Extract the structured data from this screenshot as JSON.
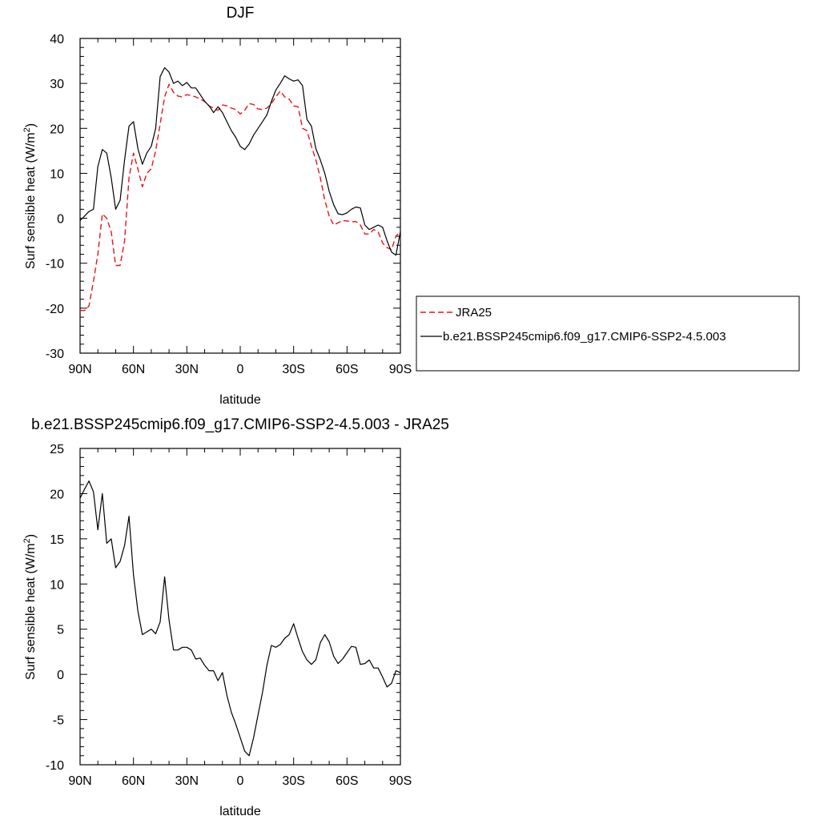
{
  "chart_data": [
    {
      "type": "line",
      "title": "DJF",
      "xlabel": "latitude",
      "ylabel": "Surf sensible heat (W/m",
      "ylabel_sup": "2",
      "ylabel_end": ")",
      "xlim": [
        90,
        -90
      ],
      "ylim": [
        -30,
        40
      ],
      "xticks": [
        90,
        60,
        30,
        0,
        -30,
        -60,
        -90
      ],
      "xtick_labels": [
        "90N",
        "60N",
        "30N",
        "0",
        "30S",
        "60S",
        "90S"
      ],
      "yticks": [
        -30,
        -20,
        -10,
        0,
        10,
        20,
        30,
        40
      ],
      "ytick_labels": [
        "-30",
        "-20",
        "-10",
        "0",
        "10",
        "20",
        "30",
        "40"
      ],
      "grid": false,
      "legend_placement": "right",
      "series": [
        {
          "name": "JRA25",
          "color": "#e8141c",
          "dash": "dashed",
          "points": [
            [
              90,
              -20.5
            ],
            [
              87.5,
              -20.5
            ],
            [
              85,
              -19.5
            ],
            [
              82.5,
              -14
            ],
            [
              80,
              -8
            ],
            [
              77.5,
              1
            ],
            [
              75,
              0
            ],
            [
              72.5,
              -3
            ],
            [
              70,
              -10.5
            ],
            [
              67.5,
              -10.5
            ],
            [
              65,
              -5
            ],
            [
              62.5,
              9
            ],
            [
              60,
              14.5
            ],
            [
              57.5,
              11
            ],
            [
              55,
              7
            ],
            [
              52.5,
              10
            ],
            [
              50,
              11
            ],
            [
              47.5,
              15
            ],
            [
              45,
              21
            ],
            [
              42.5,
              27
            ],
            [
              40,
              29.8
            ],
            [
              37.5,
              28
            ],
            [
              35,
              27.2
            ],
            [
              32.5,
              27
            ],
            [
              30,
              27.5
            ],
            [
              27.5,
              27.3
            ],
            [
              25,
              27
            ],
            [
              22.5,
              26.5
            ],
            [
              20,
              26
            ],
            [
              17.5,
              25
            ],
            [
              15,
              24.5
            ],
            [
              12.5,
              24
            ],
            [
              10,
              25.2
            ],
            [
              7.5,
              25
            ],
            [
              5,
              24.5
            ],
            [
              2.5,
              24.2
            ],
            [
              0,
              23.2
            ],
            [
              -2.5,
              24
            ],
            [
              -5,
              25.5
            ],
            [
              -7.5,
              25.3
            ],
            [
              -10,
              24.3
            ],
            [
              -12.5,
              24.2
            ],
            [
              -15,
              24.5
            ],
            [
              -17.5,
              25.5
            ],
            [
              -20,
              27
            ],
            [
              -22.5,
              28.3
            ],
            [
              -25,
              27
            ],
            [
              -27.5,
              26.5
            ],
            [
              -30,
              25
            ],
            [
              -32.5,
              24.8
            ],
            [
              -35,
              20
            ],
            [
              -37.5,
              19.5
            ],
            [
              -40,
              16
            ],
            [
              -42.5,
              13
            ],
            [
              -45,
              9
            ],
            [
              -47.5,
              4
            ],
            [
              -50,
              0.5
            ],
            [
              -52.5,
              -1.5
            ],
            [
              -55,
              -1
            ],
            [
              -57.5,
              -0.5
            ],
            [
              -60,
              -0.6
            ],
            [
              -62.5,
              -0.8
            ],
            [
              -65,
              -0.7
            ],
            [
              -67.5,
              -1.5
            ],
            [
              -70,
              -3.5
            ],
            [
              -72.5,
              -3.5
            ],
            [
              -75,
              -2.5
            ],
            [
              -77.5,
              -3
            ],
            [
              -80,
              -5.5
            ],
            [
              -82.5,
              -6.5
            ],
            [
              -85,
              -7
            ],
            [
              -87.5,
              -4
            ],
            [
              -90,
              -3
            ]
          ]
        },
        {
          "name": "b.e21.BSSP245cmip6.f09_g17.CMIP6-SSP2-4.5.003",
          "color": "#000000",
          "dash": "solid",
          "points": [
            [
              90,
              -0.5
            ],
            [
              87.5,
              0.5
            ],
            [
              85,
              1.5
            ],
            [
              82.5,
              2
            ],
            [
              80,
              11.5
            ],
            [
              77.5,
              15.3
            ],
            [
              75,
              14.5
            ],
            [
              72.5,
              9
            ],
            [
              70,
              2
            ],
            [
              67.5,
              4
            ],
            [
              65,
              13
            ],
            [
              62.5,
              20.5
            ],
            [
              60,
              21.5
            ],
            [
              57.5,
              15.5
            ],
            [
              55,
              12
            ],
            [
              52.5,
              14.5
            ],
            [
              50,
              16
            ],
            [
              47.5,
              20
            ],
            [
              45,
              31.5
            ],
            [
              42.5,
              33.5
            ],
            [
              40,
              32.5
            ],
            [
              37.5,
              30
            ],
            [
              35,
              30.5
            ],
            [
              32.5,
              29.5
            ],
            [
              30,
              30.2
            ],
            [
              27.5,
              29
            ],
            [
              25,
              29
            ],
            [
              22.5,
              27.5
            ],
            [
              20,
              26
            ],
            [
              17.5,
              25
            ],
            [
              15,
              23.5
            ],
            [
              12.5,
              24.8
            ],
            [
              10,
              23.5
            ],
            [
              7.5,
              21.5
            ],
            [
              5,
              19.5
            ],
            [
              2.5,
              18
            ],
            [
              0,
              16
            ],
            [
              -2.5,
              15.3
            ],
            [
              -5,
              16.5
            ],
            [
              -7.5,
              18.5
            ],
            [
              -10,
              20
            ],
            [
              -12.5,
              21.5
            ],
            [
              -15,
              23
            ],
            [
              -17.5,
              26
            ],
            [
              -20,
              28.5
            ],
            [
              -22.5,
              30
            ],
            [
              -25,
              31.7
            ],
            [
              -27.5,
              31
            ],
            [
              -30,
              30.5
            ],
            [
              -32.5,
              30.8
            ],
            [
              -35,
              29.5
            ],
            [
              -37.5,
              22
            ],
            [
              -40,
              20.5
            ],
            [
              -42.5,
              15.5
            ],
            [
              -45,
              13
            ],
            [
              -47.5,
              10
            ],
            [
              -50,
              6
            ],
            [
              -52.5,
              3
            ],
            [
              -55,
              1
            ],
            [
              -57.5,
              0.8
            ],
            [
              -60,
              1.2
            ],
            [
              -62.5,
              2
            ],
            [
              -65,
              2.5
            ],
            [
              -67.5,
              2.3
            ],
            [
              -70,
              -1.5
            ],
            [
              -72.5,
              -2.5
            ],
            [
              -75,
              -2
            ],
            [
              -77.5,
              -1.5
            ],
            [
              -80,
              -2
            ],
            [
              -82.5,
              -5
            ],
            [
              -85,
              -7.5
            ],
            [
              -87.5,
              -8.2
            ],
            [
              -90,
              -3
            ]
          ]
        }
      ]
    },
    {
      "type": "line",
      "title": "b.e21.BSSP245cmip6.f09_g17.CMIP6-SSP2-4.5.003 - JRA25",
      "xlabel": "latitude",
      "ylabel": "Surf sensible heat (W/m",
      "ylabel_sup": "2",
      "ylabel_end": ")",
      "xlim": [
        90,
        -90
      ],
      "ylim": [
        -10,
        25
      ],
      "xticks": [
        90,
        60,
        30,
        0,
        -30,
        -60,
        -90
      ],
      "xtick_labels": [
        "90N",
        "60N",
        "30N",
        "0",
        "30S",
        "60S",
        "90S"
      ],
      "yticks": [
        -10,
        -5,
        0,
        5,
        10,
        15,
        20,
        25
      ],
      "ytick_labels": [
        "-10",
        "-5",
        "0",
        "5",
        "10",
        "15",
        "20",
        "25"
      ],
      "grid": false,
      "series": [
        {
          "color": "#000000",
          "dash": "solid",
          "points": [
            [
              90,
              19.5
            ],
            [
              87.5,
              20.5
            ],
            [
              85,
              21.4
            ],
            [
              82.5,
              20.2
            ],
            [
              80,
              16
            ],
            [
              77.5,
              20
            ],
            [
              75,
              14.5
            ],
            [
              72.5,
              15
            ],
            [
              70,
              11.8
            ],
            [
              67.5,
              12.5
            ],
            [
              65,
              14.3
            ],
            [
              62.5,
              17.5
            ],
            [
              60,
              11
            ],
            [
              57.5,
              7
            ],
            [
              55,
              4.4
            ],
            [
              52.5,
              4.7
            ],
            [
              50,
              5
            ],
            [
              47.5,
              4.5
            ],
            [
              45,
              5.8
            ],
            [
              42.5,
              10.8
            ],
            [
              40,
              6
            ],
            [
              37.5,
              2.7
            ],
            [
              35,
              2.7
            ],
            [
              32.5,
              3
            ],
            [
              30,
              3
            ],
            [
              27.5,
              2.7
            ],
            [
              25,
              1.7
            ],
            [
              22.5,
              1.8
            ],
            [
              20,
              1
            ],
            [
              17.5,
              0.4
            ],
            [
              15,
              0.4
            ],
            [
              12.5,
              -0.7
            ],
            [
              10,
              0.2
            ],
            [
              7.5,
              -2.3
            ],
            [
              5,
              -4.2
            ],
            [
              2.5,
              -5.5
            ],
            [
              0,
              -7
            ],
            [
              -2.5,
              -8.5
            ],
            [
              -5,
              -9
            ],
            [
              -7.5,
              -7
            ],
            [
              -10,
              -4.5
            ],
            [
              -12.5,
              -2
            ],
            [
              -15,
              1
            ],
            [
              -17.5,
              3.2
            ],
            [
              -20,
              3
            ],
            [
              -22.5,
              3.3
            ],
            [
              -25,
              4
            ],
            [
              -27.5,
              4.4
            ],
            [
              -30,
              5.6
            ],
            [
              -32.5,
              4
            ],
            [
              -35,
              2.5
            ],
            [
              -37.5,
              1.6
            ],
            [
              -40,
              1.1
            ],
            [
              -42.5,
              1.6
            ],
            [
              -45,
              3.5
            ],
            [
              -47.5,
              4.4
            ],
            [
              -50,
              3.6
            ],
            [
              -52.5,
              2
            ],
            [
              -55,
              1.2
            ],
            [
              -57.5,
              1.7
            ],
            [
              -60,
              2.4
            ],
            [
              -62.5,
              3.1
            ],
            [
              -65,
              3
            ],
            [
              -67.5,
              1.1
            ],
            [
              -70,
              1.2
            ],
            [
              -72.5,
              1.6
            ],
            [
              -75,
              0.7
            ],
            [
              -77.5,
              0.7
            ],
            [
              -80,
              -0.3
            ],
            [
              -82.5,
              -1.4
            ],
            [
              -85,
              -1
            ],
            [
              -87.5,
              0.4
            ],
            [
              -90,
              0.2
            ]
          ]
        }
      ]
    }
  ]
}
